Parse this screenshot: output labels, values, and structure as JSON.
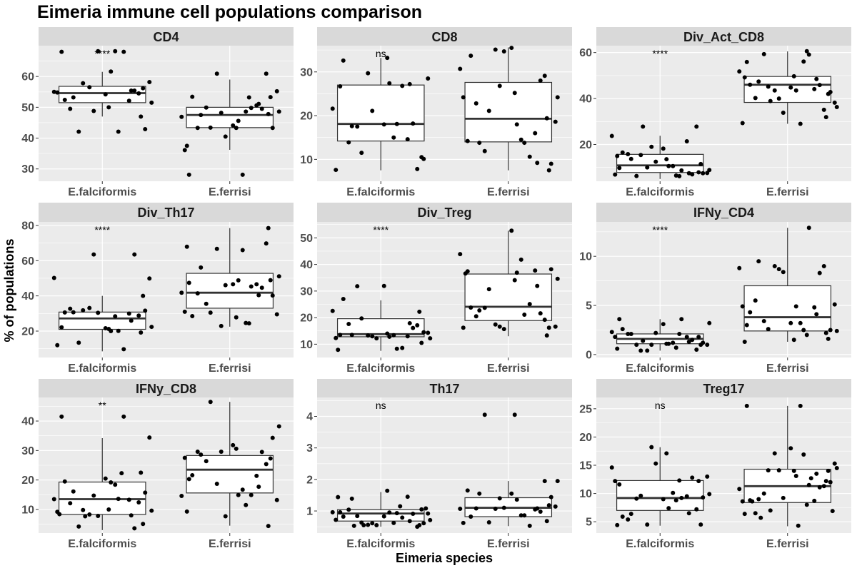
{
  "chart_data": {
    "type": "box",
    "title": "Eimeria immune cell populations comparison",
    "xlabel": "Eimeria species",
    "ylabel": "% of populations",
    "categories": [
      "E.falciformis",
      "E.ferrisi"
    ],
    "grid": true,
    "colors": {
      "panel_bg": "#ebebeb",
      "strip_bg": "#d9d9d9",
      "grid": "#ffffff",
      "box_fill": "#ffffff",
      "box_line": "#333333",
      "point": "#000000"
    },
    "facets": [
      {
        "name": "CD4",
        "significance": "****",
        "ylim": [
          26,
          70
        ],
        "yticks": [
          30,
          40,
          50,
          60
        ],
        "boxes": [
          {
            "q1": 51.5,
            "median": 54.6,
            "q3": 56.8,
            "whisker_low": 47,
            "whisker_high": 61.5
          },
          {
            "q1": 43.4,
            "median": 47.5,
            "q3": 50,
            "whisker_low": 36.2,
            "whisker_high": 59
          }
        ],
        "points": [
          [
            54.8,
            56.2,
            57.8,
            52.1,
            52.4,
            61.6,
            58.2,
            48.8,
            55.4,
            53.2,
            42.1,
            55,
            54.2,
            42.9,
            42.1,
            68,
            68,
            68.2,
            54.5,
            56.5,
            55.4,
            49.5,
            50,
            51.5,
            68.2,
            47
          ],
          [
            36.1,
            53.3,
            43.4,
            50.6,
            53.4,
            45.6,
            55.2,
            48.2,
            49.5,
            47.5,
            48.6,
            46.9,
            44.1,
            43.3,
            49.9,
            49.8,
            28.1,
            28.1,
            60.9,
            60.9,
            51.1,
            43.3,
            43.3,
            48.6,
            40.5,
            47.8,
            37.5,
            53.2
          ]
        ]
      },
      {
        "name": "CD8",
        "significance": "ns",
        "ylim": [
          5,
          36
        ],
        "yticks": [
          10,
          20,
          30
        ],
        "boxes": [
          {
            "q1": 14.2,
            "median": 18.1,
            "q3": 27,
            "whisker_low": 7.5,
            "whisker_high": 33.2
          },
          {
            "q1": 14,
            "median": 19.3,
            "q3": 27.6,
            "whisker_low": 7.5,
            "whisker_high": 35.6
          }
        ],
        "points": [
          [
            7.6,
            10.5,
            11.5,
            14.6,
            32.6,
            27.4,
            28.5,
            21.1,
            18.2,
            17.6,
            18.1,
            21.6,
            18,
            10.1,
            17.5,
            26.8,
            26.7,
            15,
            7.8,
            29.7,
            27.2,
            13.9,
            33.2
          ],
          [
            24.2,
            7.5,
            21.1,
            16,
            33.7,
            18,
            18.6,
            26.8,
            28,
            13.8,
            13.8,
            30.7,
            35.5,
            9,
            11.9,
            10.6,
            14.2,
            14.5,
            29.1,
            35.1,
            9.2,
            22.8,
            25.2,
            24.2,
            34.7,
            19.4
          ]
        ]
      },
      {
        "name": "Div_Act_CD8",
        "significance": "****",
        "ylim": [
          4,
          63
        ],
        "yticks": [
          20,
          40,
          60
        ],
        "boxes": [
          {
            "q1": 7.8,
            "median": 10.9,
            "q3": 15.7,
            "whisker_low": 5,
            "whisker_high": 23.8
          },
          {
            "q1": 38.3,
            "median": 46,
            "q3": 49.6,
            "whisker_low": 29,
            "whisker_high": 60.5
          }
        ],
        "points": [
          [
            6.9,
            11.5,
            15.4,
            21.4,
            16.5,
            10.6,
            7.6,
            19,
            7,
            13.7,
            6.5,
            23.7,
            18.2,
            7.5,
            6.3,
            8.7,
            9.8,
            10.6,
            27.8,
            10,
            7.5,
            15.8,
            13.6,
            8.9,
            12.5,
            7.9,
            15,
            6.2,
            27.8
          ],
          [
            29.3,
            42,
            45.2,
            44.1,
            46,
            43.5,
            38.2,
            40,
            45.9,
            47.4,
            56.1,
            51.8,
            44.8,
            42.8,
            59.3,
            59.1,
            55.9,
            29,
            35.1,
            43.5,
            48.5,
            40.2,
            49.7,
            36.3,
            33.8,
            31.9,
            49.2,
            60.6,
            38.9
          ]
        ]
      },
      {
        "name": "Div_Th17",
        "significance": "****",
        "ylim": [
          5,
          82
        ],
        "yticks": [
          20,
          40,
          60,
          80
        ],
        "boxes": [
          {
            "q1": 21,
            "median": 27.2,
            "q3": 30.8,
            "whisker_low": 8.5,
            "whisker_high": 40
          },
          {
            "q1": 33,
            "median": 41.8,
            "q3": 52.8,
            "whisker_low": 22.5,
            "whisker_high": 78.5
          }
        ],
        "points": [
          [
            12,
            40,
            31.8,
            29.9,
            30.6,
            20,
            49.9,
            63.5,
            63.5,
            30.7,
            20.1,
            50.2,
            21.6,
            31.6,
            13.4,
            9.7,
            22.1,
            28.4,
            28.8,
            33.1,
            25.9,
            32.7,
            21.2,
            22.4,
            30.4,
            19.2
          ],
          [
            31,
            48.9,
            30.5,
            46.6,
            28.5,
            48.8,
            29.5,
            22.9,
            44.6,
            56.1,
            24.6,
            41.8,
            46.6,
            40.2,
            35.5,
            45.3,
            47.4,
            66,
            69.8,
            66.7,
            40.4,
            41.4,
            27.8,
            51.1,
            46.1,
            78.5,
            67.9,
            24.4
          ]
        ]
      },
      {
        "name": "Div_Treg",
        "significance": "****",
        "ylim": [
          5,
          56
        ],
        "yticks": [
          10,
          20,
          30,
          40,
          50
        ],
        "boxes": [
          {
            "q1": 12.8,
            "median": 13.8,
            "q3": 19.6,
            "whisker_low": 7.5,
            "whisker_high": 26.5
          },
          {
            "q1": 18.9,
            "median": 24.1,
            "q3": 36.4,
            "whisker_low": 13,
            "whisker_high": 52.7
          }
        ],
        "points": [
          [
            12.3,
            10.5,
            19.7,
            13,
            27,
            12.8,
            14.3,
            13,
            16.1,
            13.5,
            8.3,
            22.5,
            31.9,
            14.5,
            31.8,
            8.6,
            13.5,
            13.4,
            17.1,
            13.3,
            17.9,
            17.6,
            14,
            12.2,
            12.2,
            22.2,
            7.9
          ],
          [
            16.2,
            16.2,
            30.7,
            37.7,
            23.8,
            36.9,
            16.6,
            16.6,
            21.6,
            22.7,
            21.1,
            43.9,
            52.7,
            38.2,
            23.7,
            25.1,
            37.4,
            41.8,
            19.2,
            17.4,
            31.9,
            20.5,
            34.1,
            34.6,
            15.7,
            13.3,
            36.6
          ]
        ]
      },
      {
        "name": "IFNy_CD4",
        "significance": "****",
        "ylim": [
          -0.3,
          13.5
        ],
        "yticks": [
          0,
          5,
          10
        ],
        "boxes": [
          {
            "q1": 1.1,
            "median": 1.6,
            "q3": 2.1,
            "whisker_low": 0.4,
            "whisker_high": 3.6
          },
          {
            "q1": 2.4,
            "median": 3.8,
            "q3": 7,
            "whisker_low": 1.3,
            "whisker_high": 12.9
          }
        ],
        "points": [
          [
            1.8,
            1,
            0.4,
            1.8,
            2.6,
            1.1,
            1,
            1,
            1.5,
            2.1,
            0.7,
            2.3,
            3.1,
            1.2,
            1,
            3.6,
            3.6,
            1.2,
            0.5,
            0.4,
            1.3,
            2.1,
            1.1,
            3.2,
            2.2,
            1.8,
            0.6,
            2.1,
            1.4
          ],
          [
            4.9,
            1.6,
            2.6,
            4.8,
            4.3,
            4.9,
            5.1,
            8.7,
            8.3,
            9.5,
            2.5,
            8.8,
            3.2,
            2.5,
            3.4,
            12.9,
            3,
            3.2,
            9,
            9,
            4.1,
            5.5,
            1.5,
            2.4,
            8.4,
            2.2,
            1.3,
            2
          ]
        ]
      },
      {
        "name": "IFNy_CD8",
        "significance": "**",
        "ylim": [
          2,
          48
        ],
        "yticks": [
          10,
          20,
          30,
          40
        ],
        "boxes": [
          {
            "q1": 8.3,
            "median": 13.5,
            "q3": 19.3,
            "whisker_low": 3,
            "whisker_high": 34.2
          },
          {
            "q1": 15.6,
            "median": 23.5,
            "q3": 28.3,
            "whisker_low": 4.5,
            "whisker_high": 46.5
          }
        ],
        "points": [
          [
            9.2,
            5.1,
            9.8,
            13.3,
            19.5,
            19.2,
            34.4,
            14.7,
            3.6,
            16.1,
            13.6,
            13.5,
            20.5,
            15.7,
            4.2,
            41.5,
            41.5,
            18.4,
            12.4,
            8.3,
            8,
            12.1,
            10,
            9.6,
            7.8,
            22.5,
            8.4,
            22.3,
            7.7
          ],
          [
            27.5,
            27.3,
            46.5,
            21.4,
            21.6,
            14.9,
            13.2,
            29.6,
            29.5,
            28.6,
            11.5,
            14.6,
            31.8,
            34.3,
            26.4,
            14.9,
            20.3,
            16.7,
            25.4,
            18.7,
            17.7,
            29.6,
            30.6,
            38.2,
            7.7,
            4.4,
            9.3
          ]
        ]
      },
      {
        "name": "Th17",
        "significance": "ns",
        "ylim": [
          0.3,
          4.6
        ],
        "yticks": [
          1,
          2,
          3,
          4
        ],
        "boxes": [
          {
            "q1": 0.68,
            "median": 0.92,
            "q3": 1.04,
            "whisker_low": 0.5,
            "whisker_high": 1.6
          },
          {
            "q1": 0.82,
            "median": 1.1,
            "q3": 1.42,
            "whisker_low": 0.52,
            "whisker_high": 1.95
          }
        ],
        "points": [
          [
            0.72,
            1.05,
            0.63,
            1.45,
            0.82,
            0.95,
            0.92,
            0.61,
            0.91,
            1.39,
            0.93,
            0.96,
            0.83,
            0.61,
            0.84,
            0.79,
            0.96,
            0.62,
            0.5,
            0.56,
            0.68,
            1.04,
            1.64,
            0.71,
            0.55,
            0.55,
            1.44,
            1.15,
            0.55,
            1.08,
            0.53
          ],
          [
            0.62,
            1.18,
            0.64,
            1.05,
            0.82,
            1.36,
            1.14,
            1.4,
            0.98,
            1.55,
            0.86,
            1.07,
            1.55,
            1.44,
            4.05,
            0.53,
            1.65,
            0.86,
            1.95,
            1.07,
            1.08,
            1.08,
            4.05,
            1.95,
            1.1,
            0.68
          ]
        ]
      },
      {
        "name": "Treg17",
        "significance": "ns",
        "ylim": [
          3,
          27
        ],
        "yticks": [
          5,
          10,
          15,
          20,
          25
        ],
        "boxes": [
          {
            "q1": 7,
            "median": 9.2,
            "q3": 12.3,
            "whisker_low": 4.3,
            "whisker_high": 18.2
          },
          {
            "q1": 8.4,
            "median": 11.3,
            "q3": 14.3,
            "whisker_low": 4.2,
            "whisker_high": 25.5
          }
        ],
        "points": [
          [
            12.2,
            4.5,
            9.6,
            9.5,
            5.9,
            7.4,
            13,
            18.2,
            12.8,
            6.4,
            8.8,
            14.6,
            9,
            9.3,
            9.1,
            9.2,
            11.6,
            10.1,
            7.2,
            4.5,
            6.5,
            5.4,
            17.1,
            9.9,
            15.3,
            12.2,
            4.4,
            12.3
          ],
          [
            8.6,
            14,
            14.1,
            8.7,
            8.8,
            13.1,
            15.3,
            14.1,
            11.1,
            9,
            16.9,
            10.8,
            18,
            12,
            10,
            11.5,
            25.5,
            25.5,
            11.3,
            17.1,
            13.5,
            6.5,
            14,
            14.5,
            9.2,
            12.2,
            6.4,
            8,
            7,
            6.9,
            5.7,
            4.3,
            8.6,
            12.7
          ]
        ]
      }
    ]
  }
}
